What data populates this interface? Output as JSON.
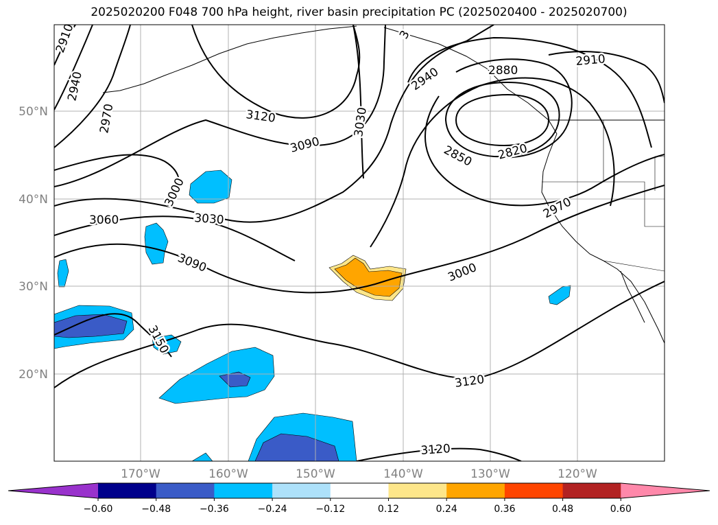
{
  "title": "2025020200 F048 700 hPa height, river basin precipitation PC (2025020400 - 2025020700)",
  "map": {
    "lat_labels": [
      "20°N",
      "30°N",
      "40°N",
      "50°N"
    ],
    "lon_labels": [
      "170°W",
      "160°W",
      "150°W",
      "140°W",
      "130°W",
      "120°W"
    ],
    "contour_labels": [
      "2910",
      "2940",
      "2970",
      "3120",
      "3090",
      "3030",
      "3000",
      "3060",
      "3030",
      "3090",
      "3150",
      "3",
      "2940",
      "2880",
      "2910",
      "2850",
      "2820",
      "2970",
      "3000",
      "3120",
      "3120"
    ],
    "contour_color": "#000000",
    "grid_color": "#b0b0b0"
  },
  "colorbar": {
    "ticks": [
      "−0.60",
      "−0.48",
      "−0.36",
      "−0.24",
      "−0.12",
      "0.12",
      "0.24",
      "0.36",
      "0.48",
      "0.60"
    ],
    "colors": [
      "#9932cc",
      "#00008b",
      "#3a5bc7",
      "#00bfff",
      "#ade1fa",
      "#ffffff",
      "#fde68a",
      "#ffa500",
      "#ff4500",
      "#b22222",
      "#ff88aa"
    ]
  }
}
